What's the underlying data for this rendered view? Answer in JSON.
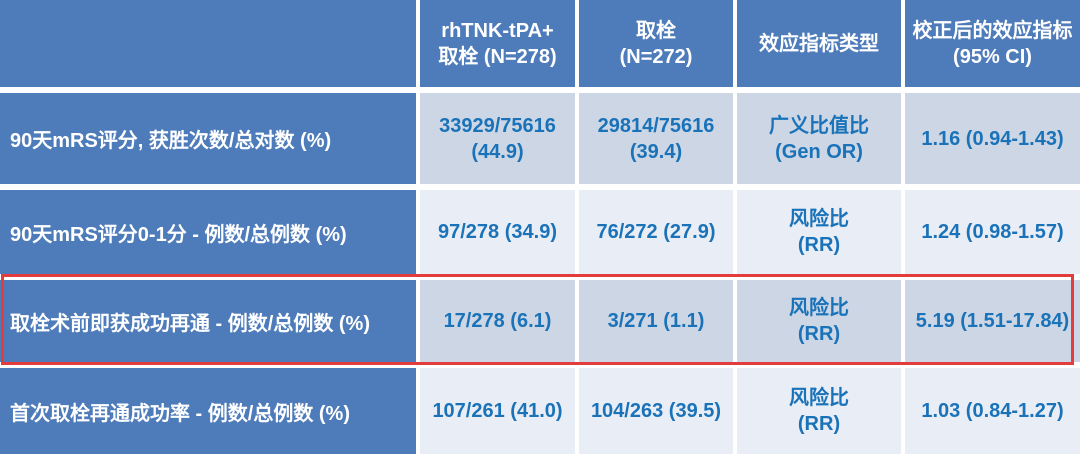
{
  "colors": {
    "header_blue": "#4e7cba",
    "band_dark": "#ccd6e5",
    "band_light": "#e9edf5",
    "text_blue": "#1a72b8",
    "highlight_red": "#e23c3c",
    "divider_white": "#ffffff"
  },
  "table": {
    "header": [
      {
        "lines": [
          ""
        ]
      },
      {
        "lines": [
          "rhTNK-tPA+",
          "取栓 (N=278)"
        ]
      },
      {
        "lines": [
          "取栓",
          "(N=272)"
        ]
      },
      {
        "lines": [
          "效应指标类型"
        ]
      },
      {
        "lines": [
          "校正后的效应指标",
          "(95% CI)"
        ]
      }
    ],
    "rows": [
      {
        "label": "90天mRS评分, 获胜次数/总对数 (%)",
        "highlighted": false,
        "cells": [
          {
            "lines": [
              "33929/75616",
              "(44.9)"
            ]
          },
          {
            "lines": [
              "29814/75616",
              "(39.4)"
            ]
          },
          {
            "lines": [
              "广义比值比",
              "(Gen OR)"
            ]
          },
          {
            "lines": [
              "1.16 (0.94-1.43)"
            ]
          }
        ]
      },
      {
        "label": "90天mRS评分0-1分 - 例数/总例数 (%)",
        "highlighted": false,
        "cells": [
          {
            "lines": [
              "97/278 (34.9)"
            ]
          },
          {
            "lines": [
              "76/272 (27.9)"
            ]
          },
          {
            "lines": [
              "风险比",
              "(RR)"
            ]
          },
          {
            "lines": [
              "1.24 (0.98-1.57)"
            ]
          }
        ]
      },
      {
        "label": "取栓术前即获成功再通 - 例数/总例数 (%)",
        "highlighted": true,
        "cells": [
          {
            "lines": [
              "17/278 (6.1)"
            ]
          },
          {
            "lines": [
              "3/271 (1.1)"
            ]
          },
          {
            "lines": [
              "风险比",
              "(RR)"
            ]
          },
          {
            "lines": [
              "5.19 (1.51-17.84)"
            ]
          }
        ]
      },
      {
        "label": "首次取栓再通成功率 - 例数/总例数 (%)",
        "highlighted": false,
        "cells": [
          {
            "lines": [
              "107/261 (41.0)"
            ]
          },
          {
            "lines": [
              "104/263 (39.5)"
            ]
          },
          {
            "lines": [
              "风险比",
              "(RR)"
            ]
          },
          {
            "lines": [
              "1.03 (0.84-1.27)"
            ]
          }
        ]
      }
    ]
  }
}
